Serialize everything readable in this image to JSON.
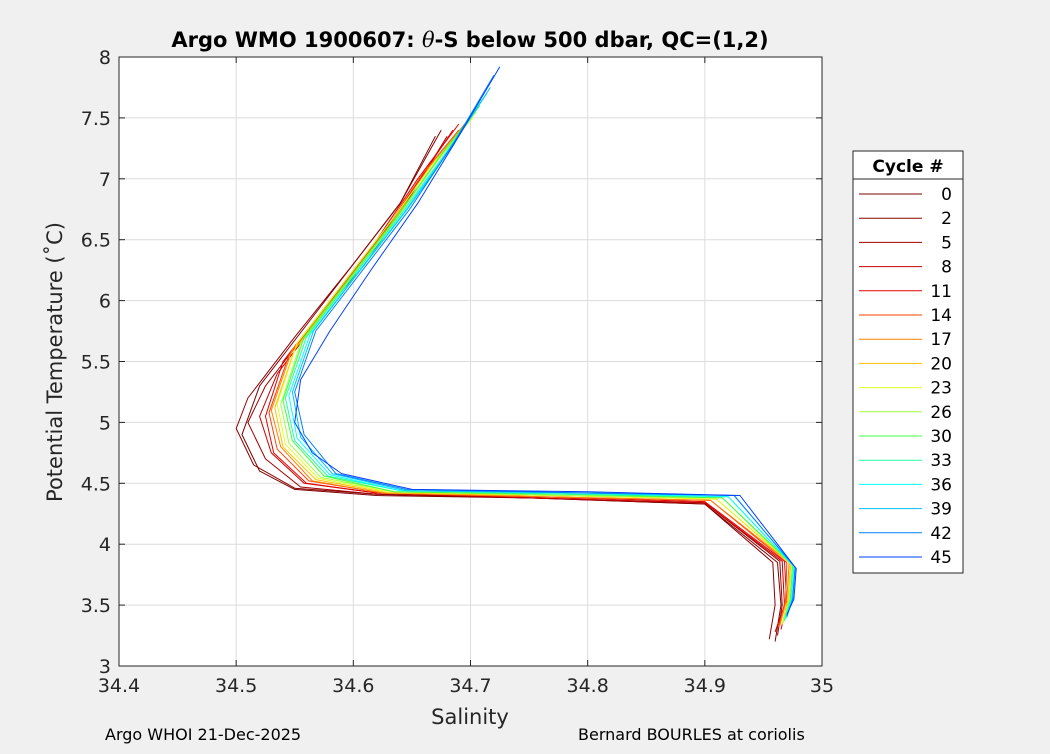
{
  "chart_data": {
    "type": "line",
    "title": "Argo WMO 1900607: θ-S below 500 dbar,  QC=(1,2)",
    "title_parts": {
      "prefix": "Argo WMO 1900607: ",
      "theta": "θ",
      "suffix": "-S below 500 dbar,  QC=(1,2)"
    },
    "xlabel": "Salinity",
    "ylabel": "Potential Temperature (˚C)",
    "xlim": [
      34.4,
      35
    ],
    "ylim": [
      3,
      8
    ],
    "xticks": [
      "34.4",
      "34.5",
      "34.6",
      "34.7",
      "34.8",
      "34.9",
      "35"
    ],
    "yticks": [
      "3",
      "3.5",
      "4",
      "4.5",
      "5",
      "5.5",
      "6",
      "6.5",
      "7",
      "7.5",
      "8"
    ],
    "grid": true,
    "legend": {
      "title": "Cycle #",
      "placement": "outside-right",
      "entries": [
        {
          "label": "0",
          "color": "#7f0000"
        },
        {
          "label": "2",
          "color": "#8c0000"
        },
        {
          "label": "5",
          "color": "#a00000"
        },
        {
          "label": "8",
          "color": "#c80000"
        },
        {
          "label": "11",
          "color": "#e60000"
        },
        {
          "label": "14",
          "color": "#ff4000"
        },
        {
          "label": "17",
          "color": "#ff8000"
        },
        {
          "label": "20",
          "color": "#ffc000"
        },
        {
          "label": "23",
          "color": "#dfff20"
        },
        {
          "label": "26",
          "color": "#a0ff40"
        },
        {
          "label": "30",
          "color": "#40ff40"
        },
        {
          "label": "33",
          "color": "#20ffa0"
        },
        {
          "label": "36",
          "color": "#00ffff"
        },
        {
          "label": "39",
          "color": "#00c0ff"
        },
        {
          "label": "42",
          "color": "#0080ff"
        },
        {
          "label": "45",
          "color": "#0040ff"
        }
      ]
    },
    "series": [
      {
        "name": "0",
        "color": "#7f0000",
        "points": [
          [
            34.96,
            3.2
          ],
          [
            34.965,
            3.5
          ],
          [
            34.962,
            3.85
          ],
          [
            34.9,
            4.33
          ],
          [
            34.75,
            4.38
          ],
          [
            34.62,
            4.4
          ],
          [
            34.55,
            4.45
          ],
          [
            34.52,
            4.6
          ],
          [
            34.505,
            4.9
          ],
          [
            34.52,
            5.3
          ],
          [
            34.56,
            5.8
          ],
          [
            34.6,
            6.3
          ],
          [
            34.64,
            6.8
          ],
          [
            34.67,
            7.35
          ]
        ]
      },
      {
        "name": "2",
        "color": "#8c0000",
        "points": [
          [
            34.955,
            3.22
          ],
          [
            34.96,
            3.5
          ],
          [
            34.958,
            3.85
          ],
          [
            34.9,
            4.33
          ],
          [
            34.75,
            4.38
          ],
          [
            34.62,
            4.41
          ],
          [
            34.55,
            4.46
          ],
          [
            34.515,
            4.65
          ],
          [
            34.5,
            4.95
          ],
          [
            34.51,
            5.2
          ],
          [
            34.55,
            5.7
          ],
          [
            34.6,
            6.3
          ],
          [
            34.64,
            6.8
          ],
          [
            34.675,
            7.4
          ]
        ]
      },
      {
        "name": "5",
        "color": "#a00000",
        "points": [
          [
            34.962,
            3.25
          ],
          [
            34.966,
            3.5
          ],
          [
            34.964,
            3.86
          ],
          [
            34.9,
            4.34
          ],
          [
            34.75,
            4.38
          ],
          [
            34.62,
            4.41
          ],
          [
            34.555,
            4.47
          ],
          [
            34.525,
            4.7
          ],
          [
            34.51,
            5.0
          ],
          [
            34.525,
            5.3
          ],
          [
            34.565,
            5.8
          ],
          [
            34.61,
            6.3
          ],
          [
            34.645,
            6.8
          ],
          [
            34.68,
            7.35
          ]
        ]
      },
      {
        "name": "8",
        "color": "#c80000",
        "points": [
          [
            34.96,
            3.28
          ],
          [
            34.968,
            3.5
          ],
          [
            34.966,
            3.86
          ],
          [
            34.9,
            4.34
          ],
          [
            34.75,
            4.38
          ],
          [
            34.62,
            4.42
          ],
          [
            34.558,
            4.5
          ],
          [
            34.53,
            4.75
          ],
          [
            34.52,
            5.05
          ],
          [
            34.535,
            5.4
          ],
          [
            34.575,
            5.9
          ],
          [
            34.615,
            6.4
          ],
          [
            34.65,
            6.9
          ],
          [
            34.685,
            7.4
          ]
        ]
      },
      {
        "name": "11",
        "color": "#e60000",
        "points": [
          [
            34.965,
            3.3
          ],
          [
            34.97,
            3.5
          ],
          [
            34.968,
            3.86
          ],
          [
            34.9,
            4.35
          ],
          [
            34.75,
            4.39
          ],
          [
            34.62,
            4.42
          ],
          [
            34.56,
            4.5
          ],
          [
            34.532,
            4.75
          ],
          [
            34.525,
            5.05
          ],
          [
            34.54,
            5.5
          ],
          [
            34.58,
            6.0
          ],
          [
            34.62,
            6.5
          ],
          [
            34.655,
            7.0
          ],
          [
            34.69,
            7.45
          ]
        ]
      },
      {
        "name": "14",
        "color": "#ff4000",
        "points": [
          [
            34.963,
            3.32
          ],
          [
            34.969,
            3.55
          ],
          [
            34.97,
            3.85
          ],
          [
            34.905,
            4.36
          ],
          [
            34.76,
            4.39
          ],
          [
            34.625,
            4.42
          ],
          [
            34.562,
            4.52
          ],
          [
            34.535,
            4.78
          ],
          [
            34.528,
            5.08
          ],
          [
            34.545,
            5.55
          ],
          [
            34.585,
            6.05
          ],
          [
            34.625,
            6.55
          ],
          [
            34.66,
            7.05
          ],
          [
            34.69,
            7.4
          ]
        ]
      },
      {
        "name": "17",
        "color": "#ff8000",
        "points": [
          [
            34.964,
            3.33
          ],
          [
            34.97,
            3.55
          ],
          [
            34.972,
            3.85
          ],
          [
            34.905,
            4.36
          ],
          [
            34.76,
            4.39
          ],
          [
            34.625,
            4.42
          ],
          [
            34.565,
            4.52
          ],
          [
            34.538,
            4.8
          ],
          [
            34.53,
            5.1
          ],
          [
            34.548,
            5.6
          ],
          [
            34.59,
            6.1
          ],
          [
            34.63,
            6.6
          ],
          [
            34.665,
            7.1
          ],
          [
            34.695,
            7.45
          ]
        ]
      },
      {
        "name": "20",
        "color": "#ffc000",
        "points": [
          [
            34.966,
            3.34
          ],
          [
            34.971,
            3.55
          ],
          [
            34.973,
            3.84
          ],
          [
            34.91,
            4.37
          ],
          [
            34.77,
            4.4
          ],
          [
            34.63,
            4.42
          ],
          [
            34.568,
            4.53
          ],
          [
            34.54,
            4.8
          ],
          [
            34.533,
            5.12
          ],
          [
            34.55,
            5.6
          ],
          [
            34.59,
            6.1
          ],
          [
            34.63,
            6.6
          ],
          [
            34.668,
            7.1
          ],
          [
            34.7,
            7.5
          ]
        ]
      },
      {
        "name": "23",
        "color": "#dfff20",
        "points": [
          [
            34.966,
            3.35
          ],
          [
            34.972,
            3.55
          ],
          [
            34.974,
            3.84
          ],
          [
            34.91,
            4.37
          ],
          [
            34.77,
            4.4
          ],
          [
            34.63,
            4.43
          ],
          [
            34.57,
            4.54
          ],
          [
            34.542,
            4.82
          ],
          [
            34.535,
            5.15
          ],
          [
            34.552,
            5.65
          ],
          [
            34.592,
            6.15
          ],
          [
            34.632,
            6.65
          ],
          [
            34.67,
            7.15
          ],
          [
            34.702,
            7.5
          ]
        ]
      },
      {
        "name": "26",
        "color": "#a0ff40",
        "points": [
          [
            34.967,
            3.36
          ],
          [
            34.972,
            3.55
          ],
          [
            34.974,
            3.83
          ],
          [
            34.915,
            4.38
          ],
          [
            34.78,
            4.4
          ],
          [
            34.635,
            4.43
          ],
          [
            34.572,
            4.55
          ],
          [
            34.545,
            4.83
          ],
          [
            34.538,
            5.15
          ],
          [
            34.555,
            5.65
          ],
          [
            34.595,
            6.15
          ],
          [
            34.635,
            6.65
          ],
          [
            34.672,
            7.15
          ],
          [
            34.705,
            7.55
          ]
        ]
      },
      {
        "name": "30",
        "color": "#40ff40",
        "points": [
          [
            34.968,
            3.37
          ],
          [
            34.973,
            3.55
          ],
          [
            34.975,
            3.83
          ],
          [
            34.915,
            4.38
          ],
          [
            34.78,
            4.41
          ],
          [
            34.635,
            4.43
          ],
          [
            34.575,
            4.56
          ],
          [
            34.548,
            4.85
          ],
          [
            34.54,
            5.18
          ],
          [
            34.558,
            5.7
          ],
          [
            34.598,
            6.2
          ],
          [
            34.638,
            6.7
          ],
          [
            34.675,
            7.2
          ],
          [
            34.708,
            7.6
          ]
        ]
      },
      {
        "name": "33",
        "color": "#20ffa0",
        "points": [
          [
            34.968,
            3.38
          ],
          [
            34.974,
            3.55
          ],
          [
            34.976,
            3.82
          ],
          [
            34.92,
            4.39
          ],
          [
            34.79,
            4.41
          ],
          [
            34.64,
            4.44
          ],
          [
            34.578,
            4.56
          ],
          [
            34.55,
            4.85
          ],
          [
            34.542,
            5.2
          ],
          [
            34.56,
            5.7
          ],
          [
            34.6,
            6.2
          ],
          [
            34.64,
            6.7
          ],
          [
            34.678,
            7.2
          ],
          [
            34.71,
            7.65
          ]
        ]
      },
      {
        "name": "36",
        "color": "#00ffff",
        "points": [
          [
            34.969,
            3.39
          ],
          [
            34.974,
            3.55
          ],
          [
            34.976,
            3.82
          ],
          [
            34.92,
            4.39
          ],
          [
            34.79,
            4.42
          ],
          [
            34.64,
            4.44
          ],
          [
            34.58,
            4.57
          ],
          [
            34.552,
            4.87
          ],
          [
            34.545,
            5.22
          ],
          [
            34.563,
            5.72
          ],
          [
            34.603,
            6.22
          ],
          [
            34.643,
            6.72
          ],
          [
            34.68,
            7.22
          ],
          [
            34.714,
            7.7
          ]
        ]
      },
      {
        "name": "39",
        "color": "#00c0ff",
        "points": [
          [
            34.97,
            3.4
          ],
          [
            34.975,
            3.55
          ],
          [
            34.977,
            3.81
          ],
          [
            34.925,
            4.4
          ],
          [
            34.8,
            4.42
          ],
          [
            34.645,
            4.44
          ],
          [
            34.582,
            4.58
          ],
          [
            34.555,
            4.88
          ],
          [
            34.548,
            5.25
          ],
          [
            34.566,
            5.75
          ],
          [
            34.606,
            6.25
          ],
          [
            34.646,
            6.75
          ],
          [
            34.683,
            7.25
          ],
          [
            34.717,
            7.75
          ]
        ]
      },
      {
        "name": "42",
        "color": "#0080ff",
        "points": [
          [
            34.97,
            3.41
          ],
          [
            34.975,
            3.55
          ],
          [
            34.977,
            3.81
          ],
          [
            34.925,
            4.4
          ],
          [
            34.8,
            4.42
          ],
          [
            34.645,
            4.45
          ],
          [
            34.585,
            4.58
          ],
          [
            34.558,
            4.9
          ],
          [
            34.55,
            5.25
          ],
          [
            34.568,
            5.75
          ],
          [
            34.608,
            6.25
          ],
          [
            34.648,
            6.75
          ],
          [
            34.686,
            7.3
          ],
          [
            34.72,
            7.85
          ]
        ]
      },
      {
        "name": "45",
        "color": "#0040ff",
        "points": [
          [
            34.97,
            3.42
          ],
          [
            34.976,
            3.55
          ],
          [
            34.978,
            3.8
          ],
          [
            34.93,
            4.4
          ],
          [
            34.8,
            4.43
          ],
          [
            34.65,
            4.45
          ],
          [
            34.59,
            4.58
          ],
          [
            34.565,
            4.75
          ],
          [
            34.55,
            5.0
          ],
          [
            34.555,
            5.35
          ],
          [
            34.58,
            5.75
          ],
          [
            34.615,
            6.25
          ],
          [
            34.655,
            6.8
          ],
          [
            34.69,
            7.35
          ],
          [
            34.725,
            7.92
          ]
        ]
      }
    ]
  },
  "footer": {
    "left": "Argo WHOI 21-Dec-2025",
    "right": "Bernard BOURLES at coriolis"
  }
}
